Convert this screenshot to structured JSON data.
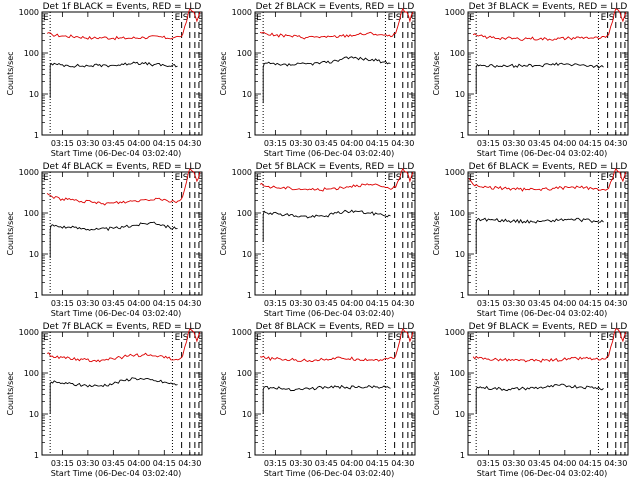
{
  "chart_data": [
    {
      "type": "line",
      "title": "Det 1f BLACK = Events, RED = LLD",
      "xlabel": "Start Time (06-Dec-04 03:02:40)",
      "ylabel": "Counts/sec",
      "yscale": "log",
      "ylim": [
        1,
        1000
      ],
      "xlim": [
        3.05,
        4.62
      ],
      "x_ticks": [
        "03:15",
        "03:30",
        "03:45",
        "04:00",
        "04:15",
        "04:30"
      ],
      "y_ticks": [
        "1",
        "10",
        "100",
        "1000"
      ],
      "markers": [
        "E",
        "S"
      ],
      "series": [
        {
          "color": "#dd0000",
          "x": [
            3.1,
            3.15,
            3.25,
            3.4,
            3.55,
            3.65,
            3.75,
            3.9,
            4.05,
            4.2,
            4.28,
            4.35,
            4.4,
            4.43,
            4.47,
            4.5,
            4.54,
            4.57,
            4.6
          ],
          "y": [
            300,
            280,
            260,
            250,
            230,
            240,
            230,
            230,
            240,
            250,
            230,
            240,
            250,
            280,
            600,
            1200,
            1000,
            600,
            1000
          ]
        },
        {
          "color": "#000000",
          "x": [
            3.13,
            3.13,
            3.14,
            3.2,
            3.3,
            3.45,
            3.6,
            3.75,
            3.85,
            3.95,
            4.05,
            4.15,
            4.25,
            4.3,
            4.38
          ],
          "y": [
            8,
            50,
            55,
            52,
            50,
            48,
            50,
            50,
            52,
            60,
            55,
            52,
            50,
            48,
            48
          ]
        }
      ]
    },
    {
      "type": "line",
      "title": "Det 2f BLACK = Events, RED = LLD",
      "xlabel": "Start Time (06-Dec-04 03:02:40)",
      "ylabel": "Counts/sec",
      "yscale": "log",
      "ylim": [
        1,
        1000
      ],
      "xlim": [
        3.05,
        4.62
      ],
      "x_ticks": [
        "03:15",
        "03:30",
        "03:45",
        "04:00",
        "04:15",
        "04:30"
      ],
      "y_ticks": [
        "1",
        "10",
        "100",
        "1000"
      ],
      "markers": [
        "E",
        "S"
      ],
      "series": [
        {
          "color": "#dd0000",
          "x": [
            3.1,
            3.15,
            3.25,
            3.4,
            3.55,
            3.65,
            3.75,
            3.9,
            4.05,
            4.2,
            4.28,
            4.35,
            4.4,
            4.43,
            4.47,
            4.5,
            4.54,
            4.57,
            4.6
          ],
          "y": [
            320,
            300,
            270,
            260,
            240,
            250,
            240,
            260,
            280,
            300,
            280,
            260,
            260,
            300,
            650,
            1200,
            1000,
            600,
            1000
          ]
        },
        {
          "color": "#000000",
          "x": [
            3.13,
            3.13,
            3.14,
            3.2,
            3.3,
            3.45,
            3.6,
            3.75,
            3.85,
            3.95,
            4.05,
            4.15,
            4.25,
            4.3,
            4.38
          ],
          "y": [
            6,
            45,
            55,
            55,
            50,
            52,
            55,
            58,
            65,
            80,
            75,
            70,
            65,
            60,
            55
          ]
        }
      ]
    },
    {
      "type": "line",
      "title": "Det 3f BLACK = Events, RED = LLD",
      "xlabel": "Start Time (06-Dec-04 03:02:40)",
      "ylabel": "Counts/sec",
      "yscale": "log",
      "ylim": [
        1,
        1000
      ],
      "xlim": [
        3.05,
        4.62
      ],
      "x_ticks": [
        "03:15",
        "03:30",
        "03:45",
        "04:00",
        "04:15",
        "04:30"
      ],
      "y_ticks": [
        "1",
        "10",
        "100",
        "1000"
      ],
      "markers": [
        "E",
        "S"
      ],
      "series": [
        {
          "color": "#dd0000",
          "x": [
            3.1,
            3.15,
            3.25,
            3.4,
            3.55,
            3.65,
            3.75,
            3.9,
            4.05,
            4.2,
            4.28,
            4.35,
            4.4,
            4.43,
            4.47,
            4.5,
            4.54,
            4.57,
            4.6
          ],
          "y": [
            280,
            260,
            240,
            230,
            220,
            230,
            220,
            220,
            230,
            240,
            230,
            230,
            240,
            280,
            600,
            1200,
            1000,
            600,
            1000
          ]
        },
        {
          "color": "#000000",
          "x": [
            3.13,
            3.13,
            3.14,
            3.2,
            3.3,
            3.45,
            3.6,
            3.75,
            3.85,
            3.95,
            4.05,
            4.15,
            4.25,
            4.3,
            4.38
          ],
          "y": [
            10,
            45,
            52,
            50,
            48,
            48,
            50,
            50,
            52,
            55,
            52,
            50,
            50,
            48,
            45
          ]
        }
      ]
    },
    {
      "type": "line",
      "title": "Det 4f BLACK = Events, RED = LLD",
      "xlabel": "Start Time (06-Dec-04 03:02:40)",
      "ylabel": "Counts/sec",
      "yscale": "log",
      "ylim": [
        1,
        1000
      ],
      "xlim": [
        3.05,
        4.62
      ],
      "x_ticks": [
        "03:15",
        "03:30",
        "03:45",
        "04:00",
        "04:15",
        "04:30"
      ],
      "y_ticks": [
        "1",
        "10",
        "100",
        "1000"
      ],
      "markers": [
        "E",
        "S"
      ],
      "series": [
        {
          "color": "#dd0000",
          "x": [
            3.1,
            3.15,
            3.25,
            3.4,
            3.55,
            3.65,
            3.75,
            3.9,
            4.05,
            4.2,
            4.28,
            4.35,
            4.4,
            4.43,
            4.47,
            4.5,
            4.54,
            4.57,
            4.6
          ],
          "y": [
            300,
            250,
            220,
            200,
            180,
            170,
            175,
            190,
            210,
            230,
            200,
            190,
            200,
            250,
            600,
            1200,
            1000,
            600,
            1000
          ]
        },
        {
          "color": "#000000",
          "x": [
            3.13,
            3.13,
            3.14,
            3.2,
            3.3,
            3.45,
            3.6,
            3.75,
            3.85,
            3.95,
            4.05,
            4.15,
            4.25,
            4.3,
            4.38
          ],
          "y": [
            8,
            40,
            50,
            48,
            45,
            42,
            40,
            42,
            45,
            50,
            55,
            60,
            50,
            45,
            42
          ]
        }
      ]
    },
    {
      "type": "line",
      "title": "Det 5f BLACK = Events, RED = LLD",
      "xlabel": "Start Time (06-Dec-04 03:02:40)",
      "ylabel": "Counts/sec",
      "yscale": "log",
      "ylim": [
        1,
        1000
      ],
      "xlim": [
        3.05,
        4.62
      ],
      "x_ticks": [
        "03:15",
        "03:30",
        "03:45",
        "04:00",
        "04:15",
        "04:30"
      ],
      "y_ticks": [
        "1",
        "10",
        "100",
        "1000"
      ],
      "markers": [
        "E",
        "S"
      ],
      "series": [
        {
          "color": "#dd0000",
          "x": [
            3.1,
            3.15,
            3.25,
            3.4,
            3.55,
            3.65,
            3.75,
            3.9,
            4.05,
            4.2,
            4.28,
            4.35,
            4.4,
            4.43,
            4.47,
            4.5,
            4.54,
            4.57,
            4.6
          ],
          "y": [
            500,
            450,
            420,
            400,
            380,
            370,
            380,
            420,
            480,
            480,
            450,
            420,
            400,
            420,
            700,
            1200,
            1000,
            600,
            1000
          ]
        },
        {
          "color": "#000000",
          "x": [
            3.13,
            3.13,
            3.14,
            3.2,
            3.3,
            3.45,
            3.6,
            3.75,
            3.85,
            3.95,
            4.05,
            4.15,
            4.25,
            4.3,
            4.38
          ],
          "y": [
            20,
            90,
            110,
            100,
            95,
            85,
            80,
            85,
            100,
            110,
            110,
            100,
            95,
            90,
            85
          ]
        }
      ]
    },
    {
      "type": "line",
      "title": "Det 6f BLACK = Events, RED = LLD",
      "xlabel": "Start Time (06-Dec-04 03:02:40)",
      "ylabel": "Counts/sec",
      "yscale": "log",
      "ylim": [
        1,
        1000
      ],
      "xlim": [
        3.05,
        4.62
      ],
      "x_ticks": [
        "03:15",
        "03:30",
        "03:45",
        "04:00",
        "04:15",
        "04:30"
      ],
      "y_ticks": [
        "1",
        "10",
        "100",
        "1000"
      ],
      "markers": [
        "E",
        "S"
      ],
      "series": [
        {
          "color": "#dd0000",
          "x": [
            3.06,
            3.1,
            3.15,
            3.25,
            3.4,
            3.55,
            3.65,
            3.75,
            3.9,
            4.05,
            4.2,
            4.28,
            4.35,
            4.4,
            4.43,
            4.47,
            4.5,
            4.54,
            4.57,
            4.6
          ],
          "y": [
            700,
            500,
            450,
            420,
            400,
            380,
            370,
            380,
            400,
            420,
            420,
            380,
            360,
            360,
            400,
            700,
            1200,
            1000,
            600,
            1000
          ]
        },
        {
          "color": "#000000",
          "x": [
            3.13,
            3.13,
            3.14,
            3.2,
            3.3,
            3.45,
            3.6,
            3.75,
            3.85,
            3.95,
            4.05,
            4.15,
            4.25,
            4.3,
            4.38
          ],
          "y": [
            10,
            60,
            70,
            70,
            68,
            65,
            62,
            62,
            65,
            68,
            70,
            68,
            65,
            62,
            60
          ]
        }
      ]
    },
    {
      "type": "line",
      "title": "Det 7f BLACK = Events, RED = LLD",
      "xlabel": "Start Time (06-Dec-04 03:02:40)",
      "ylabel": "Counts/sec",
      "yscale": "log",
      "ylim": [
        1,
        1000
      ],
      "xlim": [
        3.05,
        4.62
      ],
      "x_ticks": [
        "03:15",
        "03:30",
        "03:45",
        "04:00",
        "04:15",
        "04:30"
      ],
      "y_ticks": [
        "1",
        "10",
        "100",
        "1000"
      ],
      "markers": [
        "E",
        "S"
      ],
      "series": [
        {
          "color": "#dd0000",
          "x": [
            3.1,
            3.15,
            3.25,
            3.4,
            3.55,
            3.65,
            3.75,
            3.9,
            4.05,
            4.2,
            4.28,
            4.35,
            4.4,
            4.43,
            4.47,
            4.5,
            4.54,
            4.57,
            4.6
          ],
          "y": [
            300,
            260,
            240,
            220,
            200,
            210,
            220,
            260,
            280,
            260,
            230,
            210,
            220,
            260,
            600,
            1200,
            1000,
            600,
            1000
          ]
        },
        {
          "color": "#000000",
          "x": [
            3.13,
            3.13,
            3.14,
            3.2,
            3.3,
            3.45,
            3.6,
            3.75,
            3.85,
            3.95,
            4.05,
            4.15,
            4.25,
            4.3,
            4.38
          ],
          "y": [
            10,
            55,
            60,
            58,
            55,
            50,
            48,
            55,
            65,
            75,
            70,
            65,
            60,
            55,
            52
          ]
        }
      ]
    },
    {
      "type": "line",
      "title": "Det 8f BLACK = Events, RED = LLD",
      "xlabel": "Start Time (06-Dec-04 03:02:40)",
      "ylabel": "Counts/sec",
      "yscale": "log",
      "ylim": [
        1,
        1000
      ],
      "xlim": [
        3.05,
        4.62
      ],
      "x_ticks": [
        "03:15",
        "03:30",
        "03:45",
        "04:00",
        "04:15",
        "04:30"
      ],
      "y_ticks": [
        "1",
        "10",
        "100",
        "1000"
      ],
      "markers": [
        "E",
        "S"
      ],
      "series": [
        {
          "color": "#dd0000",
          "x": [
            3.1,
            3.15,
            3.25,
            3.4,
            3.55,
            3.65,
            3.75,
            3.9,
            4.05,
            4.2,
            4.28,
            4.35,
            4.4,
            4.43,
            4.47,
            4.5,
            4.54,
            4.57,
            4.6
          ],
          "y": [
            250,
            230,
            220,
            210,
            200,
            210,
            220,
            230,
            220,
            210,
            210,
            220,
            230,
            260,
            600,
            1200,
            1000,
            600,
            1000
          ]
        },
        {
          "color": "#000000",
          "x": [
            3.13,
            3.13,
            3.14,
            3.2,
            3.3,
            3.45,
            3.6,
            3.75,
            3.85,
            3.95,
            4.05,
            4.15,
            4.25,
            4.3,
            4.38
          ],
          "y": [
            10,
            40,
            45,
            44,
            42,
            40,
            42,
            45,
            46,
            45,
            44,
            45,
            46,
            45,
            42
          ]
        }
      ]
    },
    {
      "type": "line",
      "title": "Det 9f BLACK = Events, RED = LLD",
      "xlabel": "Start Time (06-Dec-04 03:02:40)",
      "ylabel": "Counts/sec",
      "yscale": "log",
      "ylim": [
        1,
        1000
      ],
      "xlim": [
        3.05,
        4.62
      ],
      "x_ticks": [
        "03:15",
        "03:30",
        "03:45",
        "04:00",
        "04:15",
        "04:30"
      ],
      "y_ticks": [
        "1",
        "10",
        "100",
        "1000"
      ],
      "markers": [
        "E",
        "S"
      ],
      "series": [
        {
          "color": "#dd0000",
          "x": [
            3.1,
            3.15,
            3.25,
            3.4,
            3.55,
            3.65,
            3.75,
            3.9,
            4.05,
            4.2,
            4.28,
            4.35,
            4.4,
            4.43,
            4.47,
            4.5,
            4.54,
            4.57,
            4.6
          ],
          "y": [
            250,
            230,
            220,
            210,
            200,
            200,
            200,
            210,
            220,
            230,
            220,
            210,
            220,
            260,
            600,
            1200,
            1000,
            600,
            1000
          ]
        },
        {
          "color": "#000000",
          "x": [
            3.13,
            3.13,
            3.14,
            3.2,
            3.3,
            3.45,
            3.6,
            3.75,
            3.85,
            3.95,
            4.05,
            4.15,
            4.25,
            4.3,
            4.38
          ],
          "y": [
            10,
            40,
            45,
            44,
            42,
            40,
            42,
            44,
            46,
            50,
            48,
            46,
            45,
            44,
            42
          ]
        }
      ]
    }
  ]
}
